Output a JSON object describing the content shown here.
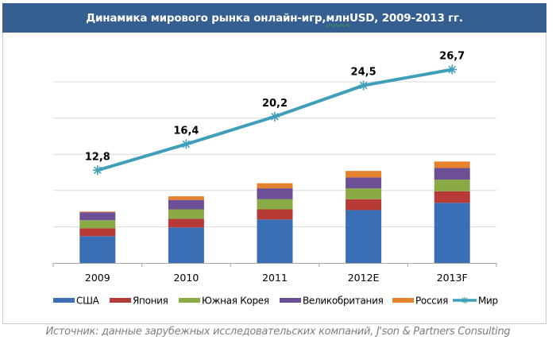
{
  "chart_data": {
    "type": "bar",
    "stacked": true,
    "title": "Динамика мирового рынка онлайн-игр, млн USD, 2009-2013 гг.",
    "title_parts": [
      "Динамика мирового рынка онлайн-игр, ",
      "млн",
      " USD, 2009-2013 гг."
    ],
    "xlabel": "",
    "ylabel": "",
    "categories": [
      "2009",
      "2010",
      "2011",
      "2012E",
      "2013F"
    ],
    "ylim": [
      0,
      30
    ],
    "ytick_step": 5,
    "grid": true,
    "y_tick_labels_visible": false,
    "series": [
      {
        "name": "США",
        "kind": "bar",
        "color": "#3a6eb5",
        "values": [
          3.7,
          4.9,
          6.0,
          7.3,
          8.3
        ]
      },
      {
        "name": "Япония",
        "kind": "bar",
        "color": "#b83a36",
        "values": [
          1.1,
          1.2,
          1.4,
          1.5,
          1.6
        ]
      },
      {
        "name": "Южная Корея",
        "kind": "bar",
        "color": "#89aa45",
        "values": [
          1.1,
          1.3,
          1.4,
          1.5,
          1.6
        ]
      },
      {
        "name": "Великобритания",
        "kind": "bar",
        "color": "#6d4f96",
        "values": [
          1.1,
          1.3,
          1.5,
          1.5,
          1.6
        ]
      },
      {
        "name": "Россия",
        "kind": "bar",
        "color": "#e6812e",
        "values": [
          0.1,
          0.5,
          0.7,
          0.9,
          0.9
        ]
      },
      {
        "name": "Мир",
        "kind": "line",
        "color": "#3f9fb8",
        "marker": "star",
        "values": [
          12.8,
          16.4,
          20.2,
          24.5,
          26.7
        ],
        "labels": [
          "12,8",
          "16,4",
          "20,2",
          "24,5",
          "26,7"
        ]
      }
    ],
    "legend": "bottom"
  },
  "source": "Источник: данные зарубежных исследовательских компаний, J'son & Partners Consulting"
}
